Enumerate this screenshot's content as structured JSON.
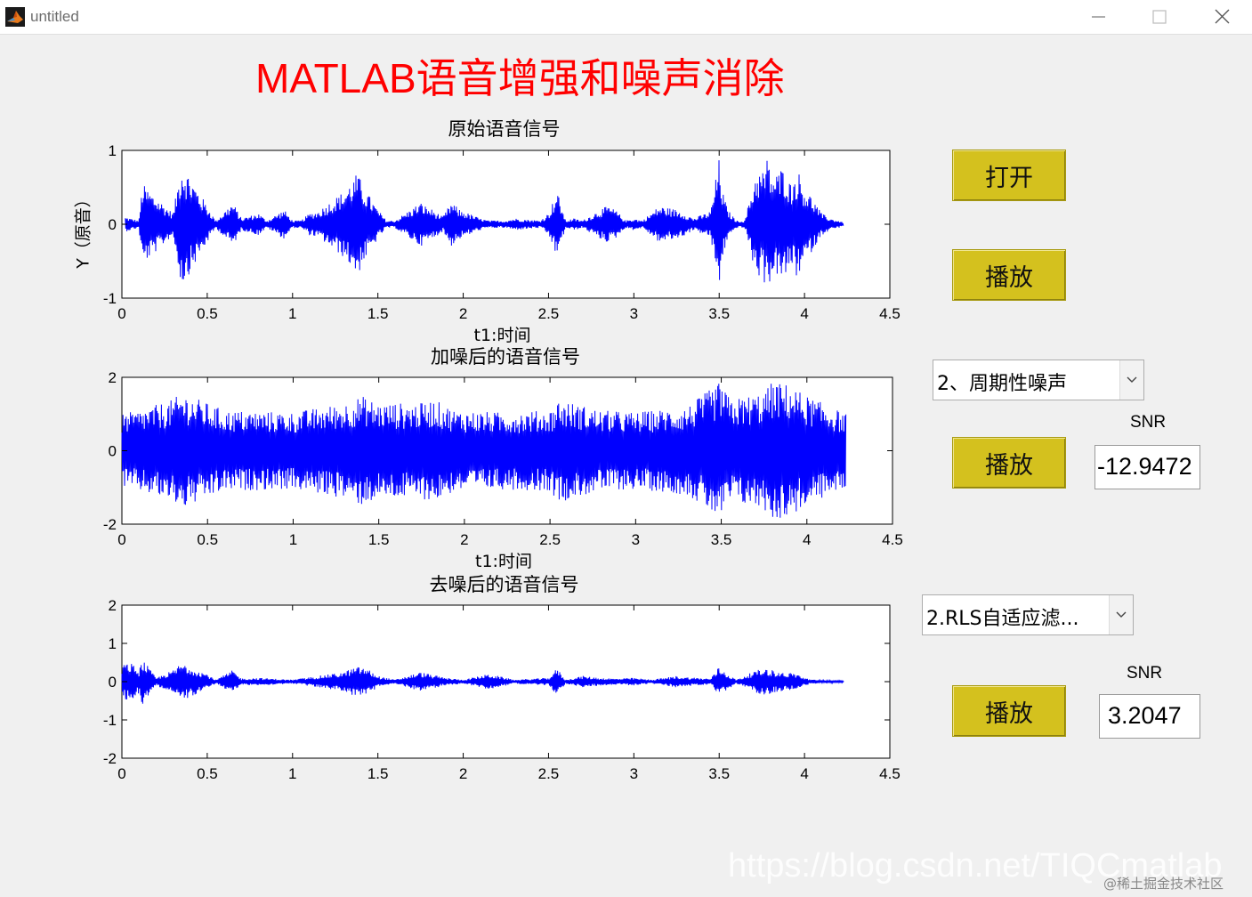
{
  "window": {
    "title": "untitled"
  },
  "main_title": "MATLAB语音增强和噪声消除",
  "buttons": {
    "open": "打开",
    "play1": "播放",
    "play2": "播放",
    "play3": "播放"
  },
  "noise_select": {
    "value": "2、周期性噪声"
  },
  "filter_select": {
    "value": "2.RLS自适应滤..."
  },
  "snr1": {
    "label": "SNR",
    "value": "-12.9472"
  },
  "snr2": {
    "label": "SNR",
    "value": "3.2047"
  },
  "watermark": "https://blog.csdn.net/TIQCmatlab",
  "watermark_small": "@稀土掘金技术社区",
  "colors": {
    "title": "#ff0000",
    "signal": "#0000ff",
    "button": "#d4c11e"
  },
  "chart_data": [
    {
      "type": "line",
      "title": "原始语音信号",
      "xlabel": "t1:时间",
      "ylabel": "Y（原音）",
      "xlim": [
        0,
        4.5
      ],
      "ylim": [
        -1,
        1
      ],
      "xticks": [
        "0",
        "0.5",
        "1",
        "1.5",
        "2",
        "2.5",
        "3",
        "3.5",
        "4",
        "4.5"
      ],
      "yticks": [
        "1",
        "0",
        "-1"
      ],
      "x": [
        0.02,
        0.1,
        0.12,
        0.3,
        0.35,
        0.5,
        0.55,
        0.65,
        0.7,
        0.8,
        0.85,
        0.95,
        1.0,
        1.05,
        1.1,
        1.15,
        1.3,
        1.35,
        1.38,
        1.42,
        1.5,
        1.55,
        1.6,
        1.75,
        1.78,
        1.82,
        1.88,
        1.93,
        1.98,
        2.1,
        2.15,
        2.2,
        2.25,
        2.3,
        2.45,
        2.5,
        2.55,
        2.57,
        2.6,
        2.65,
        2.7,
        2.8,
        2.85,
        2.9,
        2.95,
        3.0,
        3.05,
        3.15,
        3.25,
        3.3,
        3.35,
        3.45,
        3.5,
        3.52,
        3.55,
        3.6,
        3.65,
        3.72,
        3.75,
        3.78,
        3.82,
        3.88,
        3.92,
        3.96,
        4.0,
        4.05,
        4.1,
        4.15,
        4.2,
        4.23
      ],
      "series": [
        {
          "values": [
            0.1,
            0.05,
            0.55,
            0.15,
            0.85,
            0.25,
            0.05,
            0.3,
            0.08,
            0.15,
            0.05,
            0.2,
            0.05,
            0.05,
            0.15,
            0.18,
            0.45,
            0.6,
            0.7,
            0.5,
            0.2,
            0.05,
            0.05,
            0.3,
            0.25,
            0.2,
            0.1,
            0.3,
            0.2,
            0.08,
            0.05,
            0.05,
            0.05,
            0.08,
            0.05,
            0.15,
            0.45,
            0.3,
            0.05,
            0.08,
            0.05,
            0.2,
            0.25,
            0.18,
            0.05,
            0.08,
            0.05,
            0.25,
            0.2,
            0.15,
            0.08,
            0.18,
            0.9,
            0.45,
            0.2,
            0.05,
            0.05,
            0.75,
            0.7,
            0.9,
            0.65,
            0.8,
            0.55,
            0.75,
            0.5,
            0.35,
            0.15,
            0.08,
            0.05,
            0.02
          ]
        }
      ]
    },
    {
      "type": "line",
      "title": "加噪后的语音信号",
      "xlabel": "t1:时间",
      "xlim": [
        0,
        4.5
      ],
      "ylim": [
        -2,
        2
      ],
      "xticks": [
        "0",
        "0.5",
        "1",
        "1.5",
        "2",
        "2.5",
        "3",
        "3.5",
        "4",
        "4.5"
      ],
      "yticks": [
        "2",
        "0",
        "-2"
      ],
      "x": [
        0.0,
        0.1,
        0.3,
        0.35,
        0.6,
        1.0,
        1.3,
        1.4,
        1.5,
        1.75,
        1.82,
        1.95,
        2.2,
        2.5,
        2.55,
        2.8,
        3.0,
        3.3,
        3.5,
        3.55,
        3.75,
        3.8,
        3.9,
        4.0,
        4.23
      ],
      "series": [
        {
          "values": [
            1.0,
            1.1,
            1.4,
            1.6,
            1.1,
            1.05,
            1.3,
            1.5,
            1.3,
            1.3,
            1.4,
            1.1,
            1.05,
            1.1,
            1.4,
            1.1,
            1.05,
            1.2,
            1.9,
            1.4,
            1.6,
            1.9,
            1.8,
            1.5,
            1.0
          ]
        }
      ]
    },
    {
      "type": "line",
      "title": "去噪后的语音信号",
      "xlim": [
        0,
        4.5
      ],
      "ylim": [
        -2,
        2
      ],
      "xticks": [
        "0",
        "0.5",
        "1",
        "1.5",
        "2",
        "2.5",
        "3",
        "3.5",
        "4",
        "4.5"
      ],
      "yticks": [
        "2",
        "1",
        "0",
        "-1",
        "-2"
      ],
      "x": [
        0.0,
        0.05,
        0.1,
        0.12,
        0.2,
        0.3,
        0.35,
        0.5,
        0.55,
        0.65,
        0.7,
        0.8,
        1.0,
        1.3,
        1.35,
        1.4,
        1.45,
        1.5,
        1.6,
        1.75,
        1.8,
        1.9,
        2.0,
        2.15,
        2.2,
        2.3,
        2.5,
        2.55,
        2.6,
        2.7,
        2.8,
        2.9,
        3.0,
        3.1,
        3.25,
        3.3,
        3.45,
        3.5,
        3.52,
        3.6,
        3.72,
        3.78,
        3.85,
        3.95,
        4.0,
        4.05,
        4.23
      ],
      "series": [
        {
          "values": [
            0.45,
            0.5,
            0.3,
            0.6,
            0.1,
            0.3,
            0.5,
            0.2,
            0.05,
            0.3,
            0.08,
            0.1,
            0.05,
            0.25,
            0.35,
            0.4,
            0.3,
            0.15,
            0.05,
            0.25,
            0.2,
            0.1,
            0.05,
            0.2,
            0.15,
            0.05,
            0.1,
            0.35,
            0.05,
            0.15,
            0.1,
            0.08,
            0.1,
            0.05,
            0.15,
            0.12,
            0.08,
            0.4,
            0.3,
            0.05,
            0.3,
            0.35,
            0.25,
            0.22,
            0.1,
            0.05,
            0.02
          ]
        }
      ]
    }
  ]
}
